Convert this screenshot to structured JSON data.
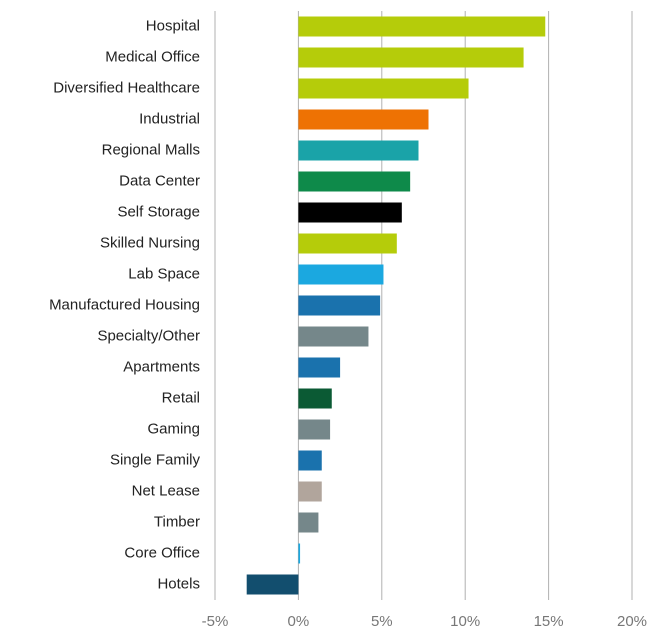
{
  "chart_data": {
    "type": "barh",
    "categories": [
      "Hospital",
      "Medical Office",
      "Diversified Healthcare",
      "Industrial",
      "Regional Malls",
      "Data Center",
      "Self Storage",
      "Skilled Nursing",
      "Lab Space",
      "Manufactured Housing",
      "Specialty/Other",
      "Apartments",
      "Retail",
      "Gaming",
      "Single Family",
      "Net Lease",
      "Timber",
      "Core Office",
      "Hotels"
    ],
    "values": [
      14.8,
      13.5,
      10.2,
      7.8,
      7.2,
      6.7,
      6.2,
      5.9,
      5.1,
      4.9,
      4.2,
      2.5,
      2.0,
      1.9,
      1.4,
      1.4,
      1.2,
      0.1,
      -3.1
    ],
    "colors": [
      "#b5cc0a",
      "#b5cc0a",
      "#b5cc0a",
      "#ee7203",
      "#1aa3a8",
      "#0e8a4a",
      "#000000",
      "#b5cc0a",
      "#1ba8e0",
      "#1a72ad",
      "#75878a",
      "#1a72ad",
      "#0b5a34",
      "#75878a",
      "#1a72ad",
      "#b1a59c",
      "#75878a",
      "#1ba8e0",
      "#124e6e"
    ],
    "xlim": [
      -5,
      20
    ],
    "xticks": [
      {
        "value": -5,
        "label": "-5%"
      },
      {
        "value": 0,
        "label": "0%"
      },
      {
        "value": 5,
        "label": "5%"
      },
      {
        "value": 10,
        "label": "10%"
      },
      {
        "value": 15,
        "label": "15%"
      },
      {
        "value": 20,
        "label": "20%"
      }
    ],
    "grid": true
  }
}
